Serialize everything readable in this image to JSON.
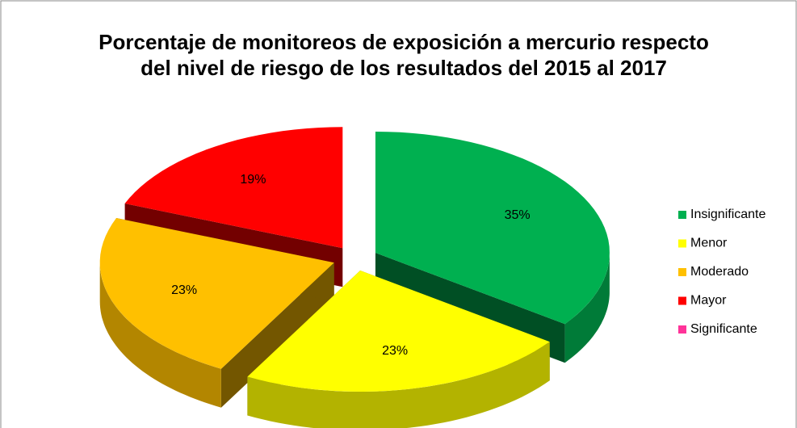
{
  "chart_data": {
    "type": "pie3d",
    "title": "Porcentaje de monitoreos de exposición a mercurio respecto del nivel de riesgo de los resultados del 2015 al 2017",
    "categories": [
      "Insignificante",
      "Menor",
      "Moderado",
      "Mayor",
      "Significante"
    ],
    "values": [
      35,
      23,
      23,
      19,
      0
    ],
    "value_labels": [
      "35%",
      "23%",
      "23%",
      "19%",
      null
    ],
    "colors": [
      "#00b050",
      "#ffff00",
      "#ffc000",
      "#ff0000",
      "#ff3399"
    ],
    "legend": "right"
  }
}
